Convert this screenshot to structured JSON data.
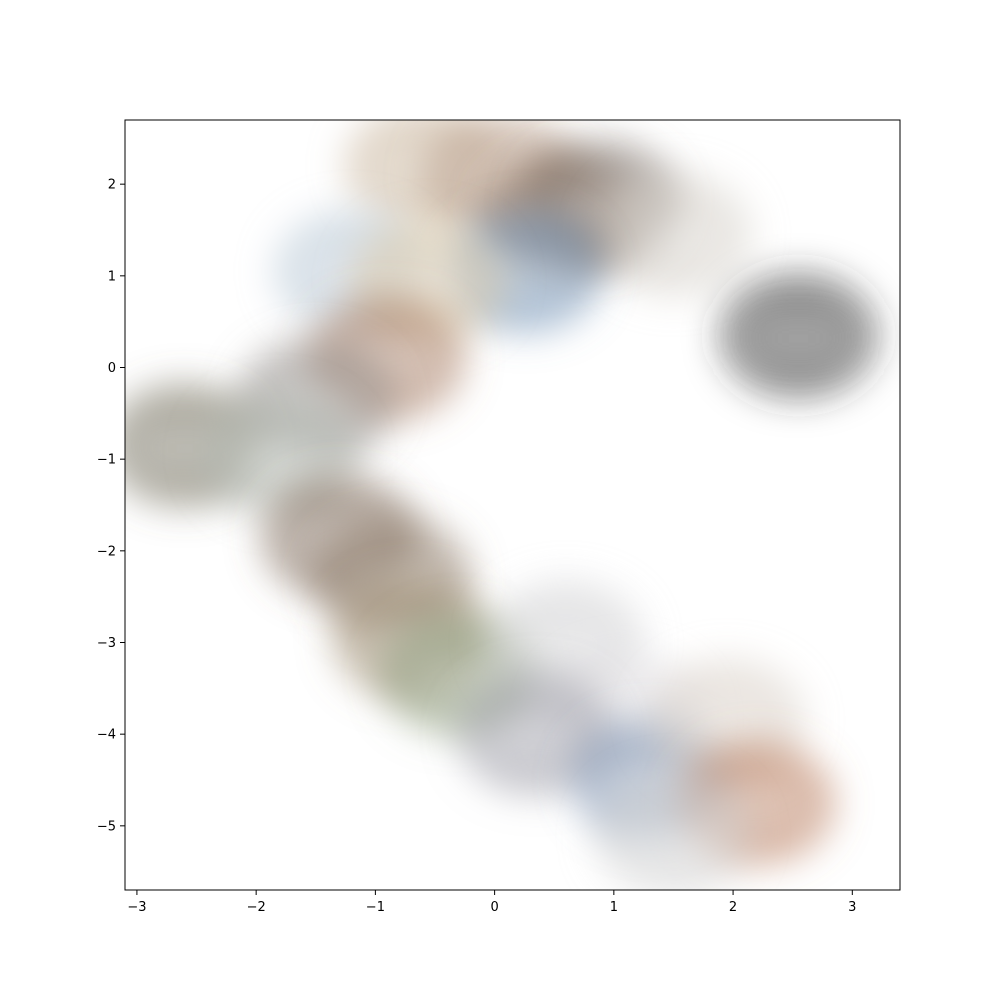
{
  "chart_data": {
    "type": "scatter",
    "title": "",
    "xlabel": "",
    "ylabel": "",
    "xlim": [
      -3.1,
      3.4
    ],
    "ylim": [
      -5.7,
      2.7
    ],
    "grid": false,
    "x_ticks": [
      -3,
      -2,
      -1,
      0,
      1,
      2,
      3
    ],
    "y_ticks": [
      2,
      1,
      0,
      -1,
      -2,
      -3,
      -4,
      -5
    ],
    "x_tick_labels": [
      "−3",
      "−2",
      "−1",
      "0",
      "1",
      "2",
      "3"
    ],
    "y_tick_labels": [
      "2",
      "1",
      "0",
      "−1",
      "−2",
      "−3",
      "−4",
      "−5"
    ],
    "marker_style": "soft-edged photo thumbnails of architecture",
    "points": [
      {
        "x": -0.6,
        "y": 2.2,
        "tone": "#c9b49a"
      },
      {
        "x": 0.05,
        "y": 2.1,
        "tone": "#b79b86"
      },
      {
        "x": 0.55,
        "y": 1.65,
        "tone": "#8a6f5a"
      },
      {
        "x": 0.9,
        "y": 1.8,
        "tone": "#7a6e66"
      },
      {
        "x": 1.5,
        "y": 1.45,
        "tone": "#d6d0c8"
      },
      {
        "x": 0.25,
        "y": 1.05,
        "tone": "#6f8fb5"
      },
      {
        "x": -1.2,
        "y": 1.05,
        "tone": "#b7c6d6"
      },
      {
        "x": -0.55,
        "y": 0.95,
        "tone": "#d8c6a6"
      },
      {
        "x": 2.55,
        "y": 0.35,
        "tone": "#2e2e2e"
      },
      {
        "x": -0.9,
        "y": 0.1,
        "tone": "#a67a5e"
      },
      {
        "x": -1.5,
        "y": -0.35,
        "tone": "#8f8a86"
      },
      {
        "x": -2.6,
        "y": -0.85,
        "tone": "#6d6a58"
      },
      {
        "x": -1.8,
        "y": -0.95,
        "tone": "#b0b6ae"
      },
      {
        "x": -1.3,
        "y": -1.85,
        "tone": "#7a6553"
      },
      {
        "x": -0.85,
        "y": -2.3,
        "tone": "#8c7a66"
      },
      {
        "x": -0.7,
        "y": -2.95,
        "tone": "#9d8a70"
      },
      {
        "x": -0.3,
        "y": -3.35,
        "tone": "#8a9a7a"
      },
      {
        "x": 0.6,
        "y": -3.0,
        "tone": "#cfcfd2"
      },
      {
        "x": 1.1,
        "y": -3.8,
        "tone": "#e2e0e4"
      },
      {
        "x": 0.35,
        "y": -4.0,
        "tone": "#9a9aa6"
      },
      {
        "x": 1.3,
        "y": -4.5,
        "tone": "#7a8fb0"
      },
      {
        "x": 1.95,
        "y": -3.85,
        "tone": "#d8d0c6"
      },
      {
        "x": 2.2,
        "y": -4.75,
        "tone": "#b87a5a"
      },
      {
        "x": 1.5,
        "y": -5.1,
        "tone": "#d2d2d2"
      }
    ]
  }
}
